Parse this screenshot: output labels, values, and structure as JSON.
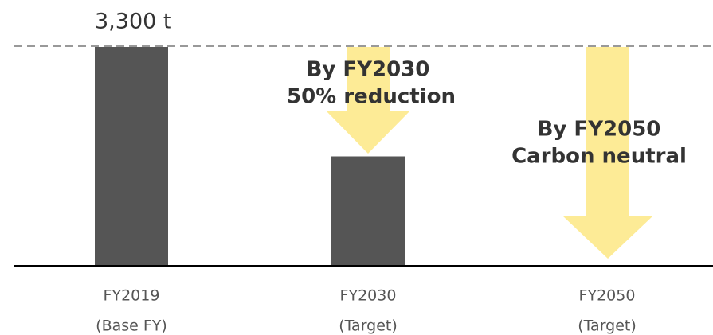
{
  "chart_data": {
    "type": "bar",
    "categories": [
      [
        "FY2019",
        "(Base FY)"
      ],
      [
        "FY2030",
        "(Target)"
      ],
      [
        "FY2050",
        "(Target)"
      ]
    ],
    "values": [
      3300,
      1650,
      0
    ],
    "value_labels": [
      "3,300 t",
      null,
      null
    ],
    "color": "#555555",
    "annotations": [
      [
        "By FY2030",
        "50% reduction"
      ],
      [
        "By FY2050",
        "Carbon neutral"
      ]
    ],
    "arrow_color": "#fdeb96"
  }
}
